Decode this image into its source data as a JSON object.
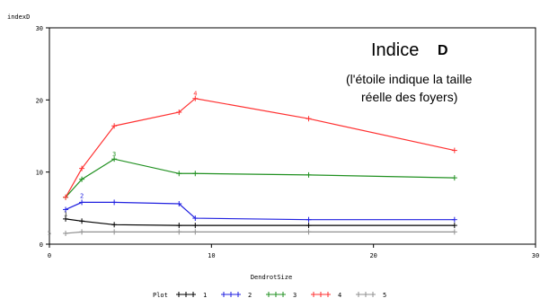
{
  "chart_data": {
    "type": "line",
    "ylabel": "indexD",
    "xlabel": "DendrotSize",
    "xlim": [
      0,
      30
    ],
    "ylim": [
      0,
      30
    ],
    "x_ticks": [
      "0",
      "10",
      "20",
      "30"
    ],
    "y_ticks": [
      "0",
      "10",
      "20",
      "30"
    ],
    "x": [
      1,
      2,
      4,
      8,
      9,
      16,
      25
    ],
    "grid": false,
    "legend": {
      "title": "Plot",
      "position": "bottom",
      "entries": [
        "1",
        "2",
        "3",
        "4",
        "5"
      ]
    },
    "annotation": {
      "title": "Indice",
      "title_letter": "D",
      "note_line1": "(l'étoile indique la taille",
      "note_line2": "réelle des foyers)"
    },
    "series": [
      {
        "name": "1",
        "color": "#000000",
        "values": [
          3.5,
          3.2,
          2.7,
          2.6,
          2.6,
          2.6,
          2.6
        ],
        "star_label": "1",
        "star_x": 1,
        "star_y": 4.3
      },
      {
        "name": "2",
        "color": "#2020e0",
        "values": [
          4.8,
          5.8,
          5.8,
          5.6,
          3.6,
          3.4,
          3.4
        ],
        "star_label": "2",
        "star_x": 2,
        "star_y": 6.8
      },
      {
        "name": "3",
        "color": "#209020",
        "values": [
          6.5,
          9.0,
          11.8,
          9.8,
          9.8,
          9.6,
          9.2
        ],
        "star_label": "3",
        "star_x": 4,
        "star_y": 12.6
      },
      {
        "name": "4",
        "color": "#ff3030",
        "values": [
          6.5,
          10.5,
          16.4,
          18.3,
          20.2,
          17.4,
          13.0
        ],
        "star_label": "4",
        "star_x": 9,
        "star_y": 21.0
      },
      {
        "name": "5",
        "color": "#909090",
        "values": [
          1.5,
          1.7,
          1.7,
          1.7,
          1.7,
          1.7,
          1.7
        ],
        "star_label": "5",
        "star_x": 0,
        "star_y": 1.6
      }
    ]
  }
}
